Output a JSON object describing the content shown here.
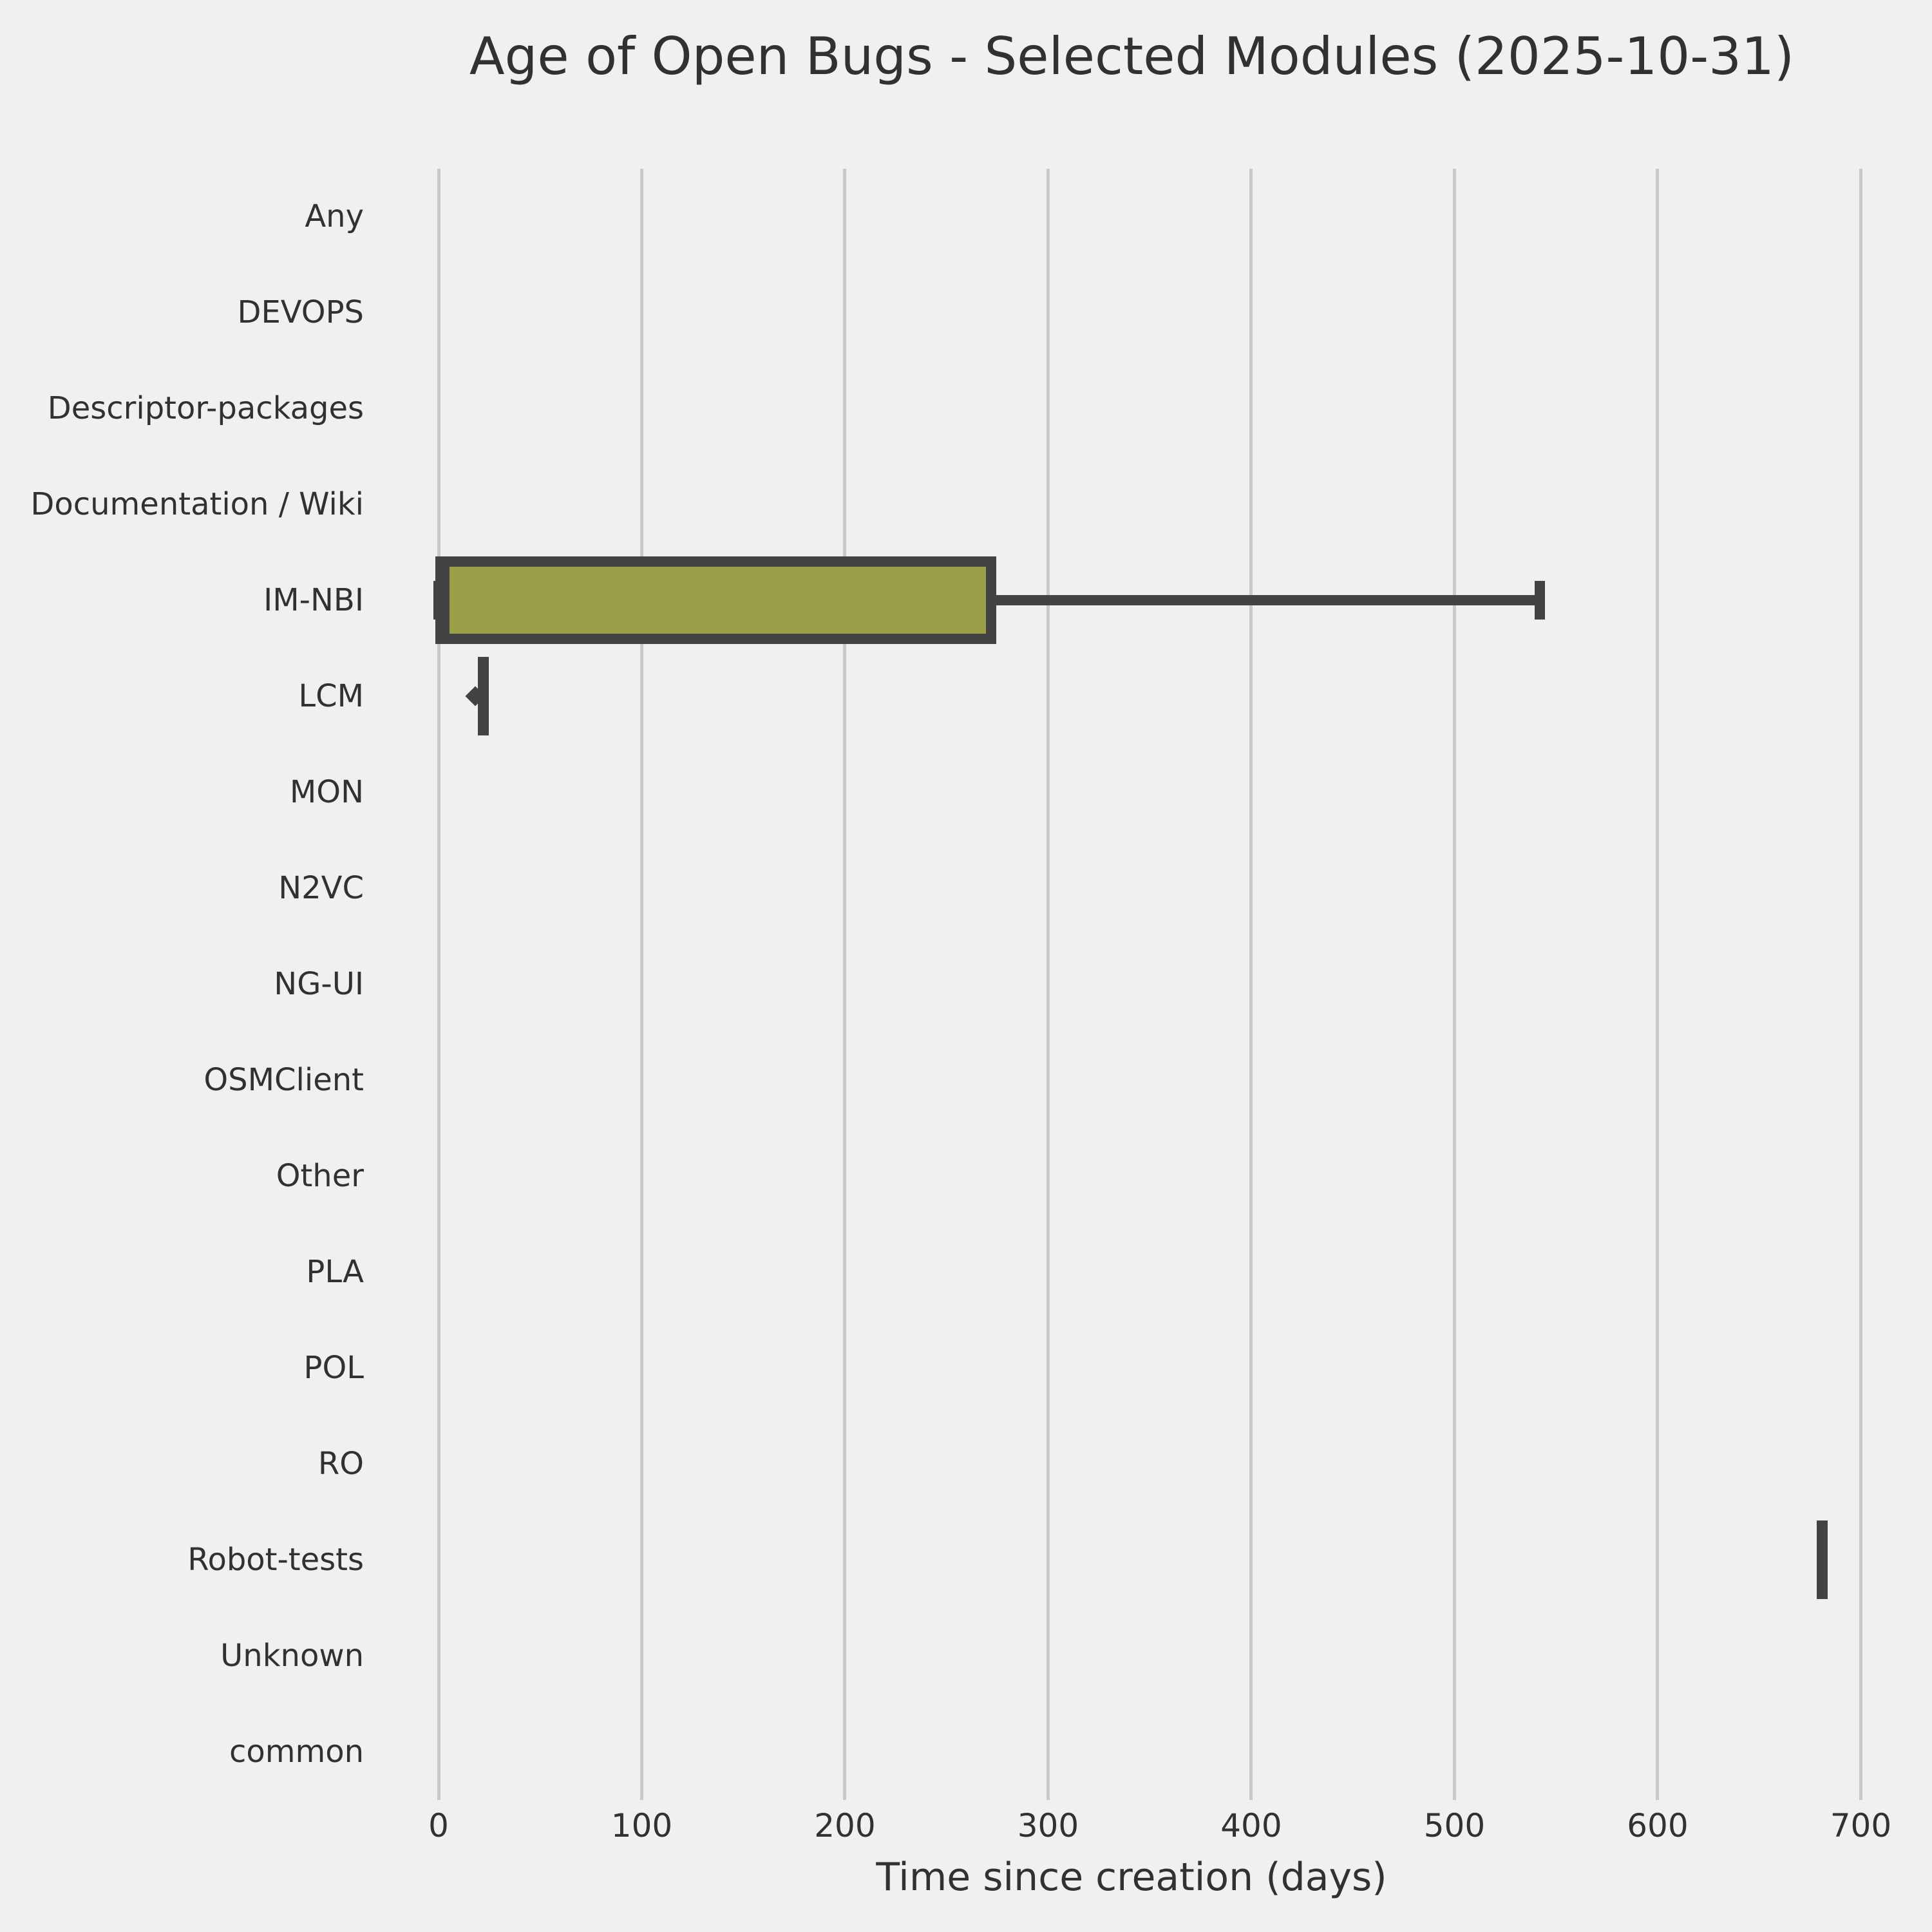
{
  "title": "Age of Open Bugs - Selected Modules (2025-10-31)",
  "chart_data": {
    "type": "boxplot",
    "orientation": "horizontal",
    "title": "Age of Open Bugs - Selected Modules (2025-10-31)",
    "xlabel": "Time since creation (days)",
    "ylabel": "",
    "x_ticks": [
      0,
      100,
      200,
      300,
      400,
      500,
      600,
      700
    ],
    "xlim": [
      -35,
      715
    ],
    "grid": "vertical-only",
    "legend": "none",
    "categories": [
      "Any",
      "DEVOPS",
      "Descriptor-packages",
      "Documentation / Wiki",
      "IM-NBI",
      "LCM",
      "MON",
      "N2VC",
      "NG-UI",
      "OSMClient",
      "Other",
      "PLA",
      "POL",
      "RO",
      "Robot-tests",
      "Unknown",
      "common"
    ],
    "series": [
      {
        "category": "Any",
        "stats": null
      },
      {
        "category": "DEVOPS",
        "stats": null
      },
      {
        "category": "Descriptor-packages",
        "stats": null
      },
      {
        "category": "Documentation / Wiki",
        "stats": null
      },
      {
        "category": "IM-NBI",
        "stats": {
          "whislo": 0,
          "q1": 1,
          "med": 3,
          "q3": 272,
          "whishi": 542,
          "fliers": []
        }
      },
      {
        "category": "LCM",
        "stats": {
          "whislo": 22,
          "q1": 22,
          "med": 22,
          "q3": 22,
          "whishi": 22,
          "fliers": [
            18
          ]
        }
      },
      {
        "category": "MON",
        "stats": null
      },
      {
        "category": "N2VC",
        "stats": null
      },
      {
        "category": "NG-UI",
        "stats": null
      },
      {
        "category": "OSMClient",
        "stats": null
      },
      {
        "category": "Other",
        "stats": null
      },
      {
        "category": "PLA",
        "stats": null
      },
      {
        "category": "POL",
        "stats": null
      },
      {
        "category": "RO",
        "stats": null
      },
      {
        "category": "Robot-tests",
        "stats": {
          "whislo": 681,
          "q1": 681,
          "med": 681,
          "q3": 681,
          "whishi": 681,
          "fliers": []
        }
      },
      {
        "category": "Unknown",
        "stats": null
      },
      {
        "category": "common",
        "stats": null
      }
    ],
    "colors": {
      "background": "#f0f0f0",
      "grid": "#c9c9c9",
      "box_fill": "#9a9e46",
      "box_edge": "#434343",
      "text": "#313131"
    }
  }
}
